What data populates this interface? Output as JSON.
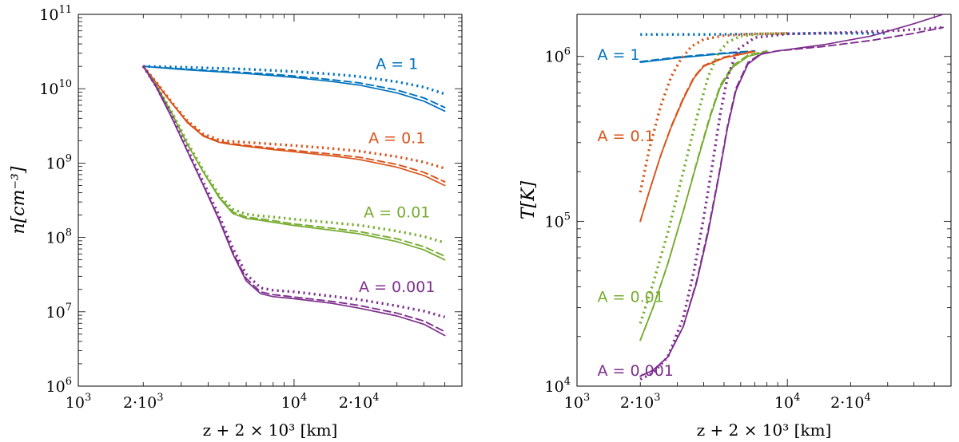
{
  "chart_data": [
    {
      "type": "line",
      "title": "",
      "xlabel": "z + 2 × 10³ [km]",
      "ylabel": "n[cm⁻³]",
      "xscale": "log",
      "yscale": "log",
      "xlim": [
        1000,
        60000
      ],
      "ylim": [
        1000000.0,
        100000000000.0
      ],
      "x_ticks": [
        {
          "value": 1000,
          "base": "10",
          "exp": "3"
        },
        {
          "value": 2000,
          "base": "2·10",
          "exp": "3"
        },
        {
          "value": 10000,
          "base": "10",
          "exp": "4"
        },
        {
          "value": 20000,
          "base": "2·10",
          "exp": "4"
        }
      ],
      "y_ticks": [
        {
          "value": 1000000.0,
          "base": "10",
          "exp": "6"
        },
        {
          "value": 10000000.0,
          "base": "10",
          "exp": "7"
        },
        {
          "value": 100000000.0,
          "base": "10",
          "exp": "8"
        },
        {
          "value": 1000000000.0,
          "base": "10",
          "exp": "9"
        },
        {
          "value": 10000000000.0,
          "base": "10",
          "exp": "10"
        },
        {
          "value": 100000000000.0,
          "base": "10",
          "exp": "11"
        }
      ],
      "line_styles": [
        "solid",
        "dashed",
        "dotted"
      ],
      "series": [
        {
          "name": "A = 1",
          "color": "#0072BD",
          "label_pos": [
            30000,
            22000000000.0
          ],
          "solid": {
            "x": [
              2000,
              3000,
              4000,
              6000,
              8000,
              10000,
              15000,
              20000,
              30000,
              40000,
              50000
            ],
            "y": [
              20000000000.0,
              18200000000.0,
              17200000000.0,
              16000000000.0,
              15000000000.0,
              14200000000.0,
              12500000000.0,
              11200000000.0,
              8800000000.0,
              6800000000.0,
              5000000000.0
            ]
          },
          "dashed": {
            "x": [
              2000,
              3000,
              4000,
              6000,
              8000,
              10000,
              15000,
              20000,
              30000,
              40000,
              50000
            ],
            "y": [
              20000000000.0,
              18500000000.0,
              17600000000.0,
              16500000000.0,
              15600000000.0,
              14800000000.0,
              13200000000.0,
              12000000000.0,
              9600000000.0,
              7500000000.0,
              5600000000.0
            ]
          },
          "dotted": {
            "x": [
              2000,
              3000,
              4000,
              6000,
              8000,
              10000,
              15000,
              20000,
              30000,
              40000,
              50000
            ],
            "y": [
              20000000000.0,
              19500000000.0,
              19000000000.0,
              18300000000.0,
              17600000000.0,
              17000000000.0,
              15700000000.0,
              14600000000.0,
              12400000000.0,
              10500000000.0,
              8500000000.0
            ]
          }
        },
        {
          "name": "A = 0.1",
          "color": "#D95319",
          "label_pos": [
            30000,
            2200000000.0
          ],
          "solid": {
            "x": [
              2000,
              2300,
              2700,
              3200,
              3800,
              4500,
              5000,
              6000,
              8000,
              10000,
              15000,
              20000,
              30000,
              40000,
              50000
            ],
            "y": [
              20000000000.0,
              12000000000.0,
              6500000000.0,
              3500000000.0,
              2300000000.0,
              1900000000.0,
              1800000000.0,
              1680000000.0,
              1520000000.0,
              1420000000.0,
              1250000000.0,
              1120000000.0,
              880000000.0,
              680000000.0,
              500000000.0
            ]
          },
          "dashed": {
            "x": [
              2000,
              2300,
              2700,
              3200,
              3800,
              4500,
              5000,
              6000,
              8000,
              10000,
              15000,
              20000,
              30000,
              40000,
              50000
            ],
            "y": [
              20000000000.0,
              12000000000.0,
              6500000000.0,
              3600000000.0,
              2350000000.0,
              1950000000.0,
              1850000000.0,
              1730000000.0,
              1580000000.0,
              1480000000.0,
              1320000000.0,
              1200000000.0,
              960000000.0,
              750000000.0,
              560000000.0
            ]
          },
          "dotted": {
            "x": [
              2000,
              2300,
              2700,
              3200,
              3800,
              4500,
              5000,
              6000,
              8000,
              10000,
              15000,
              20000,
              30000,
              40000,
              50000
            ],
            "y": [
              20000000000.0,
              12200000000.0,
              6700000000.0,
              3700000000.0,
              2450000000.0,
              2050000000.0,
              1970000000.0,
              1900000000.0,
              1800000000.0,
              1720000000.0,
              1570000000.0,
              1450000000.0,
              1220000000.0,
              1030000000.0,
              850000000.0
            ]
          }
        },
        {
          "name": "A = 0.01",
          "color": "#77AC30",
          "label_pos": [
            30000,
            220000000.0
          ],
          "solid": {
            "x": [
              2000,
              2300,
              2700,
              3200,
              3800,
              4500,
              5200,
              6000,
              7000,
              8000,
              10000,
              15000,
              20000,
              30000,
              40000,
              50000
            ],
            "y": [
              20000000000.0,
              11000000000.0,
              4800000000.0,
              1800000000.0,
              750000000.0,
              340000000.0,
              210000000.0,
              180000000.0,
              170000000.0,
              160000000.0,
              145000000.0,
              125000000.0,
              112000000.0,
              88000000.0,
              68000000.0,
              50000000.0
            ]
          },
          "dashed": {
            "x": [
              2000,
              2300,
              2700,
              3200,
              3800,
              4500,
              5200,
              6000,
              7000,
              8000,
              10000,
              15000,
              20000,
              30000,
              40000,
              50000
            ],
            "y": [
              20000000000.0,
              11000000000.0,
              4800000000.0,
              1800000000.0,
              760000000.0,
              350000000.0,
              220000000.0,
              188000000.0,
              178000000.0,
              168000000.0,
              152000000.0,
              133000000.0,
              120000000.0,
              96000000.0,
              75000000.0,
              56000000.0
            ]
          },
          "dotted": {
            "x": [
              2000,
              2300,
              2700,
              3200,
              3800,
              4500,
              5200,
              6000,
              7000,
              8000,
              10000,
              15000,
              20000,
              30000,
              40000,
              50000
            ],
            "y": [
              20000000000.0,
              11200000000.0,
              5000000000.0,
              1900000000.0,
              800000000.0,
              370000000.0,
              240000000.0,
              205000000.0,
              195000000.0,
              188000000.0,
              176000000.0,
              158000000.0,
              146000000.0,
              122000000.0,
              103000000.0,
              85000000.0
            ]
          }
        },
        {
          "name": "A = 0.001",
          "color": "#7E2F8E",
          "label_pos": [
            30000,
            22000000.0
          ],
          "solid": {
            "x": [
              2000,
              2300,
              2700,
              3200,
              3800,
              4500,
              5200,
              6000,
              7000,
              8000,
              9000,
              10000,
              15000,
              20000,
              30000,
              40000,
              50000
            ],
            "y": [
              20000000000.0,
              10500000000.0,
              4200000000.0,
              1450000000.0,
              500000000.0,
              170000000.0,
              60000000.0,
              26000000.0,
              17500000.0,
              16000000.0,
              15500000.0,
              15000000.0,
              13000000.0,
              11200000.0,
              8800000.0,
              6800000.0,
              4800000.0
            ]
          },
          "dashed": {
            "x": [
              2000,
              2300,
              2700,
              3200,
              3800,
              4500,
              5200,
              6000,
              7000,
              8000,
              9000,
              10000,
              15000,
              20000,
              30000,
              40000,
              50000
            ],
            "y": [
              20000000000.0,
              10500000000.0,
              4200000000.0,
              1450000000.0,
              500000000.0,
              175000000.0,
              63000000.0,
              28000000.0,
              18500000.0,
              17000000.0,
              16400000.0,
              15800000.0,
              13800000.0,
              12200000.0,
              9600000.0,
              7500000.0,
              5400000.0
            ]
          },
          "dotted": {
            "x": [
              2000,
              2300,
              2700,
              3200,
              3800,
              4500,
              5200,
              6000,
              7000,
              8000,
              9000,
              10000,
              15000,
              20000,
              30000,
              40000,
              50000
            ],
            "y": [
              20000000000.0,
              10700000000.0,
              4400000000.0,
              1550000000.0,
              550000000.0,
              195000000.0,
              72000000.0,
              32000000.0,
              21000000.0,
              19500000.0,
              19000000.0,
              18600000.0,
              16200000.0,
              14600000.0,
              12000000.0,
              10200000.0,
              8500000.0
            ]
          }
        }
      ]
    },
    {
      "type": "line",
      "title": "",
      "xlabel": "z + 2 × 10³ [km]",
      "ylabel": "T[K]",
      "xscale": "log",
      "yscale": "log",
      "xlim": [
        1000,
        60000
      ],
      "ylim": [
        10000.0,
        1800000.0
      ],
      "x_ticks": [
        {
          "value": 1000,
          "base": "10",
          "exp": "3"
        },
        {
          "value": 2000,
          "base": "2·10",
          "exp": "3"
        },
        {
          "value": 10000,
          "base": "10",
          "exp": "4"
        },
        {
          "value": 20000,
          "base": "2·10",
          "exp": "4"
        }
      ],
      "y_ticks": [
        {
          "value": 10000.0,
          "base": "10",
          "exp": "4"
        },
        {
          "value": 100000.0,
          "base": "10",
          "exp": "5"
        },
        {
          "value": 1000000.0,
          "base": "10",
          "exp": "6"
        }
      ],
      "line_styles": [
        "solid",
        "dashed",
        "dotted"
      ],
      "series": [
        {
          "name": "A = 1",
          "color": "#0072BD",
          "label_pos": [
            1250,
            1030000.0
          ],
          "solid": {
            "x": [
              2000,
              3000,
              5000,
              7000
            ],
            "y": [
              920000.0,
              980000.0,
              1040000.0,
              1070000.0
            ]
          },
          "dashed": {
            "x": [
              2000,
              3000,
              5000,
              7000
            ],
            "y": [
              930000.0,
              990000.0,
              1050000.0,
              1080000.0
            ]
          },
          "dotted": {
            "x": [
              2000,
              4000,
              8000,
              15000,
              30000
            ],
            "y": [
              1360000.0,
              1360000.0,
              1370000.0,
              1380000.0,
              1380000.0
            ]
          }
        },
        {
          "name": "A = 0.1",
          "color": "#D95319",
          "label_pos": [
            1250,
            330000.0
          ],
          "solid": {
            "x": [
              2000,
              2200,
              2500,
              2800,
              3200,
              3600,
              4000,
              5000,
              7000
            ],
            "y": [
              100000.0,
              150000.0,
              250000.0,
              370000.0,
              550000.0,
              740000.0,
              870000.0,
              980000.0,
              1070000.0
            ]
          },
          "dashed": {
            "x": [
              2000,
              2200,
              2500,
              2800,
              3200,
              3600,
              4000,
              5000,
              7000
            ],
            "y": [
              100000.0,
              150000.0,
              250000.0,
              375000.0,
              560000.0,
              750000.0,
              880000.0,
              990000.0,
              1080000.0
            ]
          },
          "dotted": {
            "x": [
              2000,
              2200,
              2500,
              2800,
              3100,
              3500,
              4000,
              5000,
              7000,
              10000
            ],
            "y": [
              150000.0,
              270000.0,
              500000.0,
              750000.0,
              950000.0,
              1150000.0,
              1270000.0,
              1340000.0,
              1370000.0,
              1380000.0
            ]
          }
        },
        {
          "name": "A = 0.01",
          "color": "#77AC30",
          "label_pos": [
            1250,
            35000.0
          ],
          "solid": {
            "x": [
              2000,
              2300,
              2700,
              3200,
              3800,
              4300,
              4800,
              5500,
              6500,
              8000
            ],
            "y": [
              19000.0,
              30000.0,
              55000.0,
              115000.0,
              250000.0,
              430000.0,
              650000.0,
              860000.0,
              1000000.0,
              1070000.0
            ]
          },
          "dashed": {
            "x": [
              2000,
              2300,
              2700,
              3200,
              3800,
              4300,
              4800,
              5500,
              6500,
              8000
            ],
            "y": [
              19000.0,
              30000.0,
              55000.0,
              115000.0,
              255000.0,
              440000.0,
              670000.0,
              880000.0,
              1020000.0,
              1080000.0
            ]
          },
          "dotted": {
            "x": [
              2000,
              2300,
              2700,
              3200,
              3700,
              4200,
              4700,
              5200,
              6000,
              7500,
              10000
            ],
            "y": [
              24000.0,
              42000.0,
              85000.0,
              200000.0,
              420000.0,
              750000.0,
              1050000.0,
              1220000.0,
              1330000.0,
              1370000.0,
              1380000.0
            ]
          }
        },
        {
          "name": "A = 0.001",
          "color": "#7E2F8E",
          "label_pos": [
            1250,
            12500.0
          ],
          "solid": {
            "x": [
              2000,
              2300,
              2700,
              3200,
              3700,
              4200,
              4700,
              5200,
              5700,
              6500,
              7500,
              9000,
              15000,
              25000,
              40000,
              55000
            ],
            "y": [
              11500.0,
              12500.0,
              15000.0,
              23000.0,
              42000.0,
              85000.0,
              180000.0,
              370000.0,
              620000.0,
              900000.0,
              1030000.0,
              1080000.0,
              1180000.0,
              1330000.0,
              1580000.0,
              1800000.0
            ]
          },
          "dashed": {
            "x": [
              2000,
              2300,
              2700,
              3200,
              3700,
              4200,
              4700,
              5200,
              5700,
              6500,
              7500,
              9000,
              15000,
              25000,
              40000,
              55000
            ],
            "y": [
              11500.0,
              12500.0,
              15000.0,
              23000.0,
              43000.0,
              88000.0,
              185000.0,
              380000.0,
              640000.0,
              920000.0,
              1040000.0,
              1080000.0,
              1150000.0,
              1250000.0,
              1380000.0,
              1500000.0
            ]
          },
          "dotted": {
            "x": [
              2000,
              2300,
              2700,
              3200,
              3600,
              4000,
              4400,
              4800,
              5200,
              5800,
              7000,
              10000,
              20000,
              35000,
              55000
            ],
            "y": [
              11000.0,
              12000.0,
              15000.0,
              26000.0,
              50000.0,
              105000.0,
              220000.0,
              450000.0,
              750000.0,
              1100000.0,
              1300000.0,
              1370000.0,
              1400000.0,
              1440000.0,
              1500000.0
            ]
          }
        }
      ]
    }
  ]
}
